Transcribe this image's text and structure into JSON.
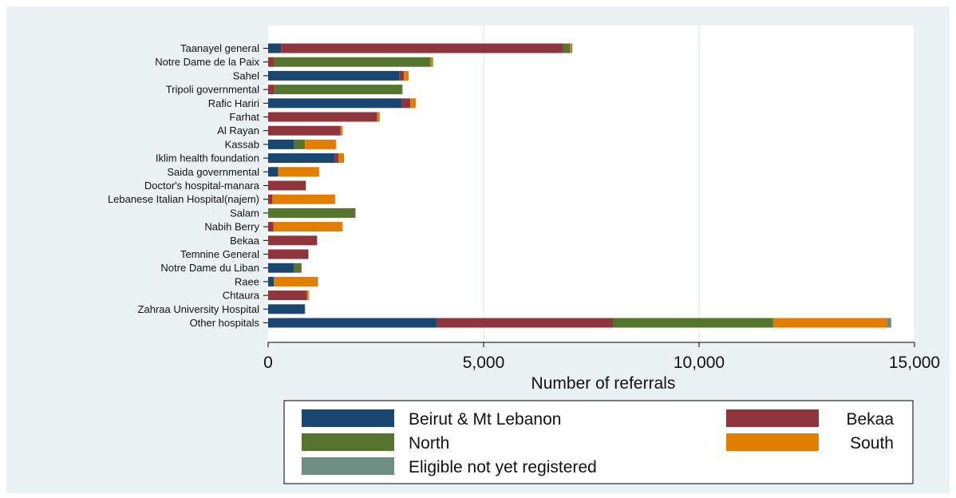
{
  "chart_data": {
    "type": "bar",
    "orientation": "horizontal",
    "stacked": true,
    "categories": [
      "Taanayel general",
      "Notre Dame de la Paix",
      "Sahel",
      "Tripoli governmental",
      "Rafic Hariri",
      "Farhat",
      "Al Rayan",
      "Kassab",
      "Iklim health foundation",
      "Saida governmental",
      "Doctor's hospital-manara",
      "Lebanese Italian Hospital(najem)",
      "Salam",
      "Nabih Berry",
      "Bekaa",
      "Temnine General",
      "Notre Dame du Liban",
      "Raee",
      "Chtaura",
      "Zahraa University Hospital",
      "Other hospitals"
    ],
    "series": [
      {
        "name": "Beirut & Mt Lebanon",
        "color": "#1a476f",
        "values": [
          300,
          0,
          3050,
          0,
          3100,
          0,
          0,
          600,
          1550,
          230,
          0,
          0,
          0,
          0,
          0,
          0,
          600,
          130,
          0,
          850,
          3920
        ]
      },
      {
        "name": "Bekaa",
        "color": "#90353b",
        "values": [
          6550,
          130,
          100,
          130,
          200,
          2530,
          1680,
          0,
          80,
          0,
          870,
          100,
          0,
          120,
          1130,
          930,
          0,
          0,
          900,
          0,
          4080
        ]
      },
      {
        "name": "North",
        "color": "#55752f",
        "values": [
          150,
          3630,
          0,
          2980,
          0,
          0,
          0,
          250,
          0,
          0,
          0,
          0,
          2020,
          0,
          0,
          0,
          170,
          0,
          0,
          0,
          3720
        ]
      },
      {
        "name": "South",
        "color": "#e37e00",
        "values": [
          20,
          60,
          100,
          0,
          120,
          50,
          40,
          720,
          120,
          950,
          0,
          1450,
          0,
          1600,
          0,
          0,
          0,
          1020,
          40,
          0,
          2650
        ]
      },
      {
        "name": "Eligible not yet registered",
        "color": "#6e8e84",
        "values": [
          40,
          10,
          10,
          10,
          10,
          10,
          10,
          10,
          10,
          10,
          10,
          10,
          10,
          10,
          10,
          10,
          10,
          10,
          10,
          10,
          90
        ]
      }
    ],
    "title": "",
    "xlabel": "Number of referrals",
    "ylabel": "",
    "xlim": [
      0,
      15000
    ],
    "xticks": [
      0,
      5000,
      10000,
      15000
    ],
    "xtick_labels": [
      "0",
      "5,000",
      "10,000",
      "15,000"
    ],
    "grid": true,
    "legend_position": "bottom",
    "legend": [
      {
        "label": "Beirut & Mt Lebanon",
        "color": "#1a476f"
      },
      {
        "label": "Bekaa",
        "color": "#90353b"
      },
      {
        "label": "North",
        "color": "#55752f"
      },
      {
        "label": "South",
        "color": "#e37e00"
      },
      {
        "label": "Eligible not yet registered",
        "color": "#6e8e84"
      }
    ],
    "colors": {
      "outer_background": "#eaf2f3",
      "plot_background": "#ffffff",
      "gridline": "#eaf2f3"
    }
  }
}
